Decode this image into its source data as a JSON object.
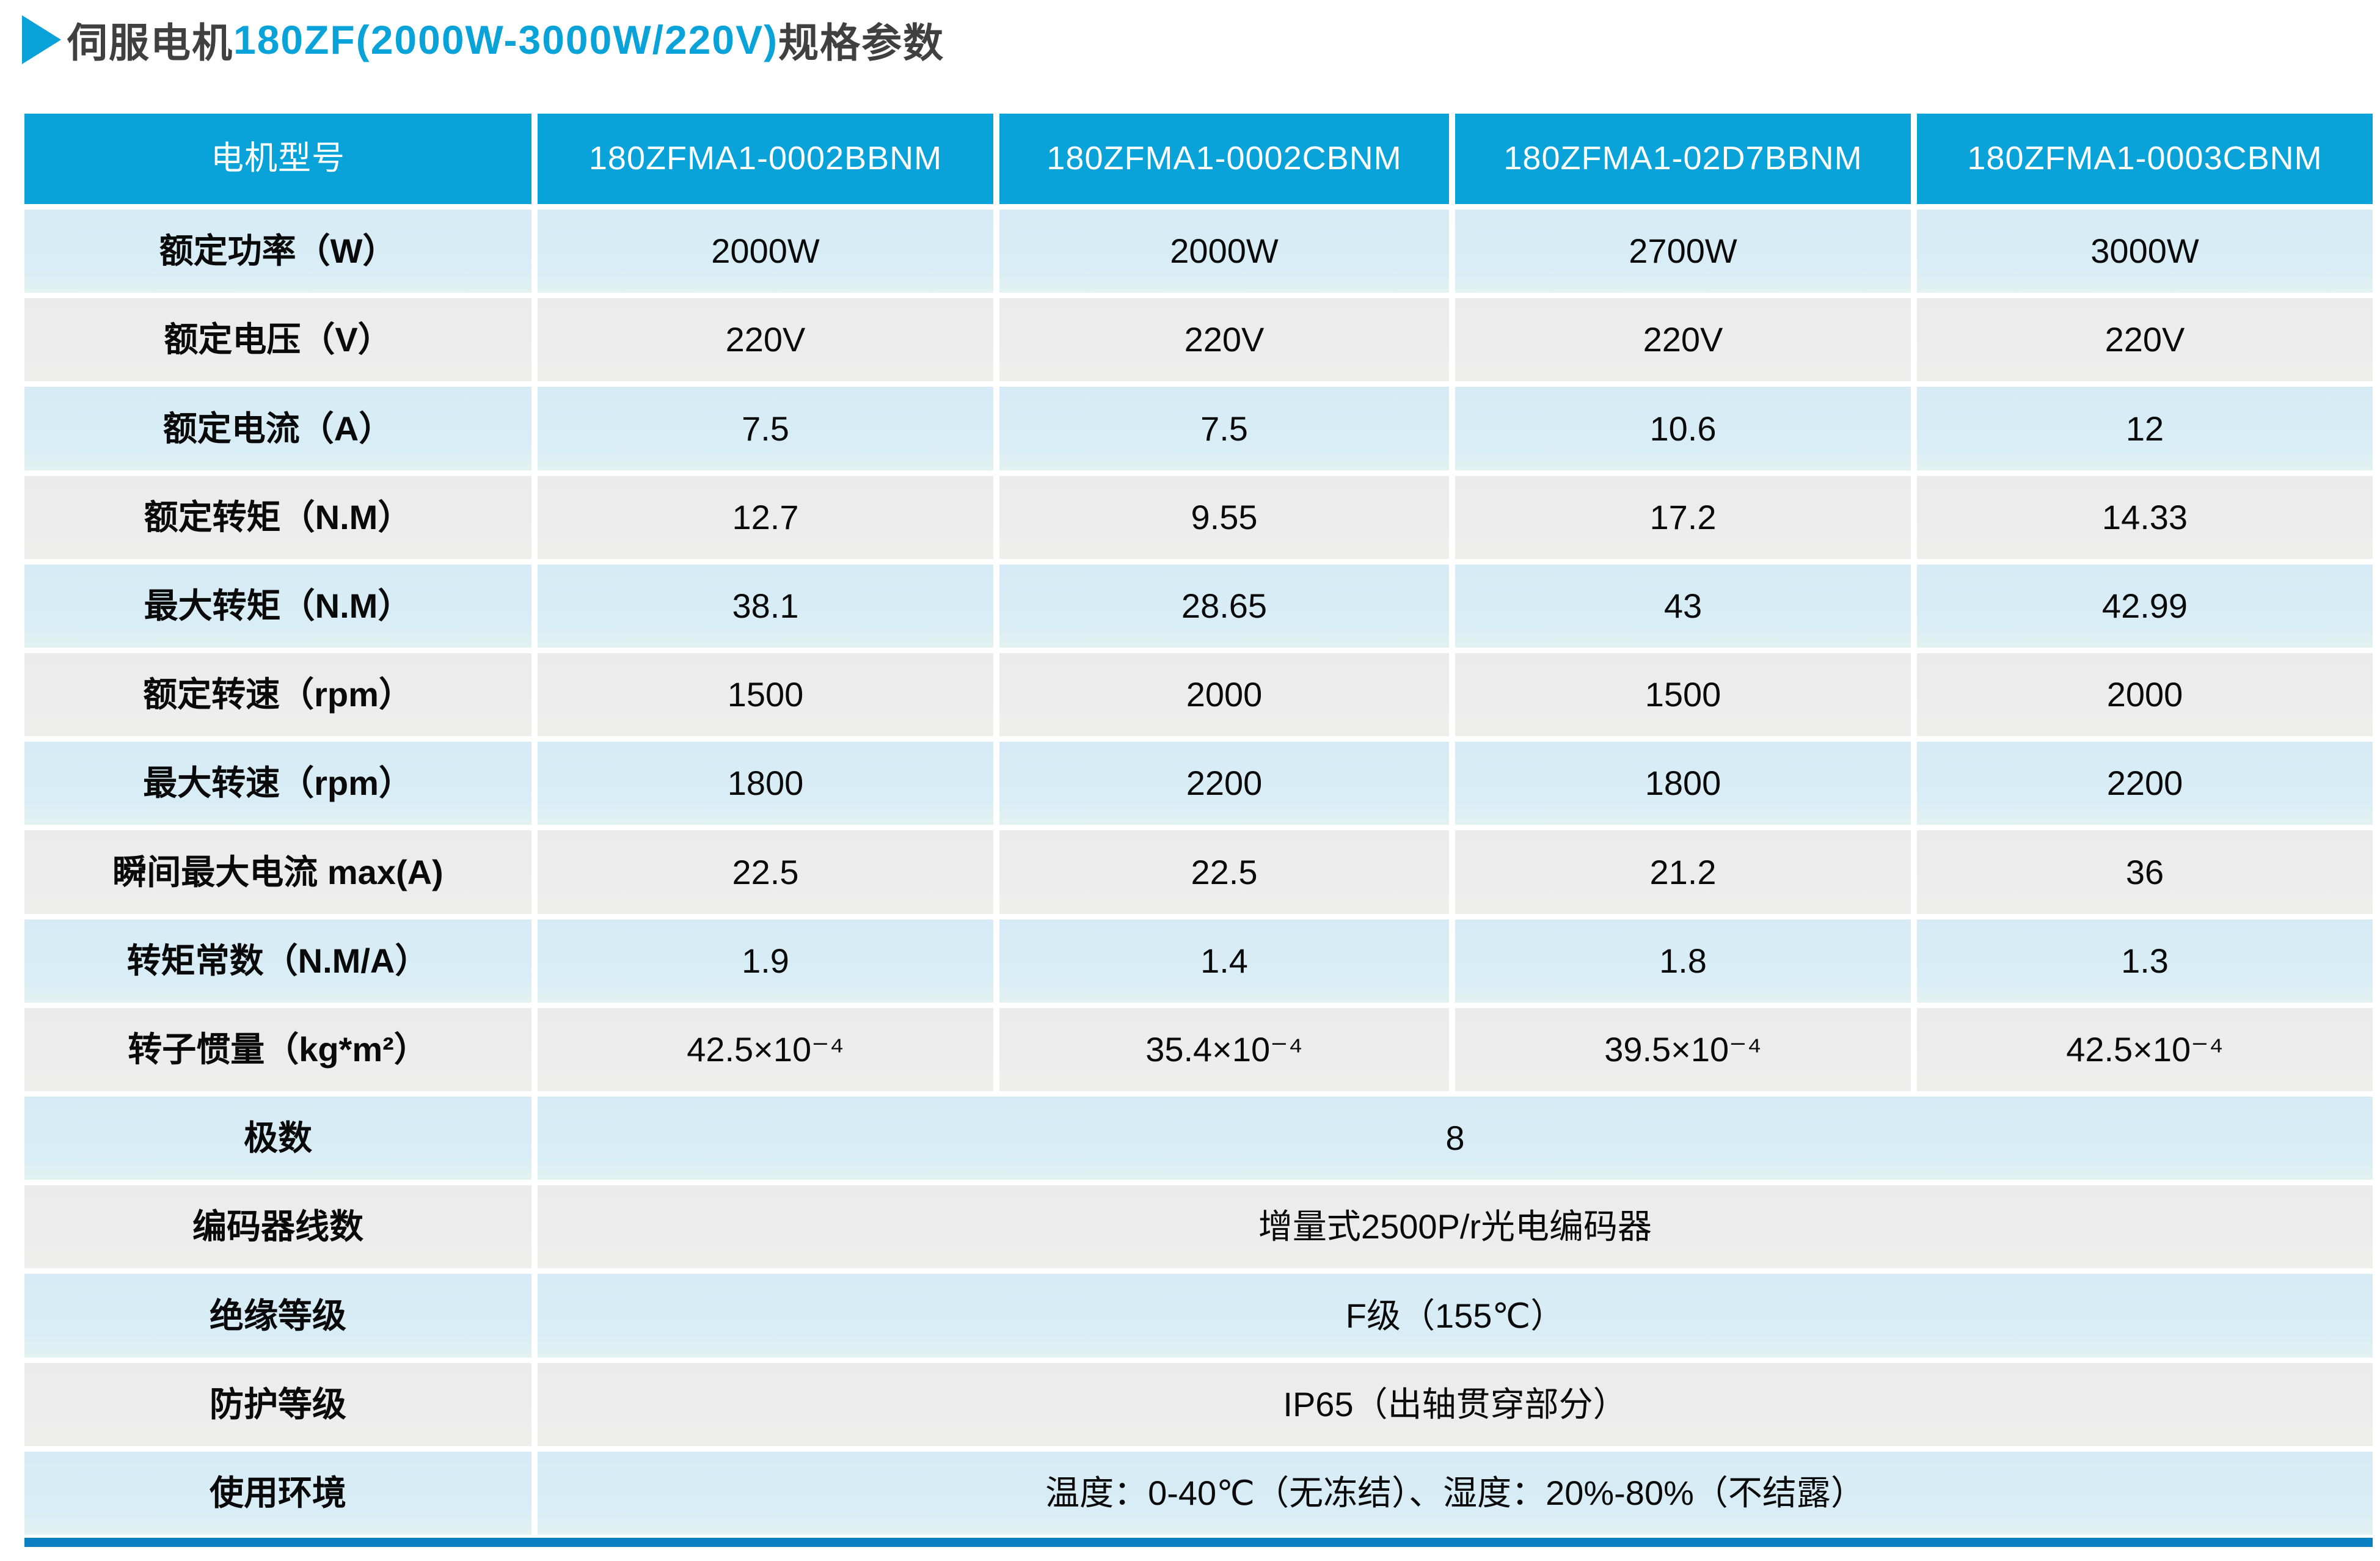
{
  "page": {
    "title": {
      "part1": "伺服电机",
      "part2": "180ZF(2000W-3000W/220V)",
      "part3": "规格参数"
    },
    "colors": {
      "accent_blue": "#09a2d9",
      "title_dark": "#404040",
      "row_light_blue": "#d9edf6",
      "row_gray": "#ececec",
      "bottom_bar_blue": "#0a80c3",
      "header_text": "#ffffff",
      "cell_text": "#0a0a0a"
    }
  },
  "table": {
    "header": [
      "电机型号",
      "180ZFMA1-0002BBNM",
      "180ZFMA1-0002CBNM",
      "180ZFMA1-02D7BBNM",
      "180ZFMA1-0003CBNM"
    ],
    "rows": [
      {
        "label": "额定功率（W）",
        "values": [
          "2000W",
          "2000W",
          "2700W",
          "3000W"
        ]
      },
      {
        "label": "额定电压（V）",
        "values": [
          "220V",
          "220V",
          "220V",
          "220V"
        ]
      },
      {
        "label": "额定电流（A）",
        "values": [
          "7.5",
          "7.5",
          "10.6",
          "12"
        ]
      },
      {
        "label": "额定转矩（N.M）",
        "values": [
          "12.7",
          "9.55",
          "17.2",
          "14.33"
        ]
      },
      {
        "label": "最大转矩（N.M）",
        "values": [
          "38.1",
          "28.65",
          "43",
          "42.99"
        ]
      },
      {
        "label": "额定转速（rpm）",
        "values": [
          "1500",
          "2000",
          "1500",
          "2000"
        ]
      },
      {
        "label": "最大转速（rpm）",
        "values": [
          "1800",
          "2200",
          "1800",
          "2200"
        ]
      },
      {
        "label": "瞬间最大电流 max(A)",
        "values": [
          "22.5",
          "22.5",
          "21.2",
          "36"
        ]
      },
      {
        "label": "转矩常数（N.M/A）",
        "values": [
          "1.9",
          "1.4",
          "1.8",
          "1.3"
        ]
      },
      {
        "label": "转子惯量（kg*m²）",
        "values": [
          "42.5×10⁻⁴",
          "35.4×10⁻⁴",
          "39.5×10⁻⁴",
          "42.5×10⁻⁴"
        ]
      },
      {
        "label": "极数",
        "span_value": "8"
      },
      {
        "label": "编码器线数",
        "span_value": "增量式2500P/r光电编码器"
      },
      {
        "label": "绝缘等级",
        "span_value": "F级（155℃）"
      },
      {
        "label": "防护等级",
        "span_value": "IP65（出轴贯穿部分）"
      },
      {
        "label": "使用环境",
        "span_value": "温度：0-40℃（无冻结）、湿度：20%-80%（不结露）"
      }
    ]
  }
}
